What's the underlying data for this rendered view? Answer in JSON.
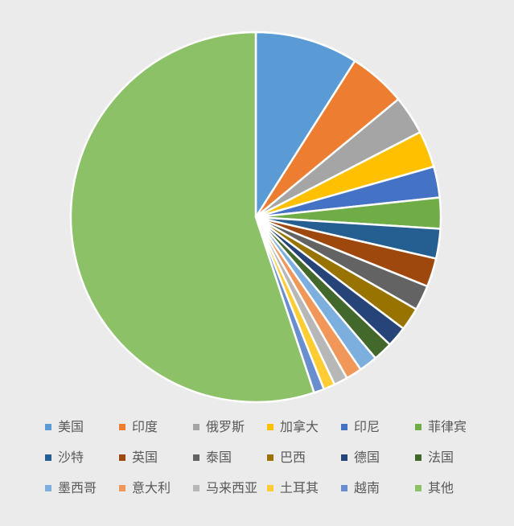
{
  "chart_data": {
    "type": "pie",
    "title": "",
    "legend_position": "bottom",
    "categories": [
      "美国",
      "印度",
      "俄罗斯",
      "加拿大",
      "印尼",
      "菲律宾",
      "沙特",
      "英国",
      "泰国",
      "巴西",
      "德国",
      "法国",
      "墨西哥",
      "意大利",
      "马来西亚",
      "土耳其",
      "越南",
      "其他"
    ],
    "values": [
      9.0,
      5.0,
      3.4,
      3.2,
      2.7,
      2.7,
      2.6,
      2.5,
      2.2,
      2.0,
      1.8,
      1.7,
      1.6,
      1.4,
      1.2,
      1.0,
      0.9,
      55.1
    ],
    "colors": [
      "#5b9bd5",
      "#ed7d31",
      "#a5a5a5",
      "#ffc000",
      "#4472c4",
      "#70ad47",
      "#255e91",
      "#9e480e",
      "#636363",
      "#997300",
      "#264478",
      "#43682b",
      "#7cafdd",
      "#f1975a",
      "#b7b7b7",
      "#ffcd33",
      "#698ed0",
      "#8cc168"
    ]
  }
}
